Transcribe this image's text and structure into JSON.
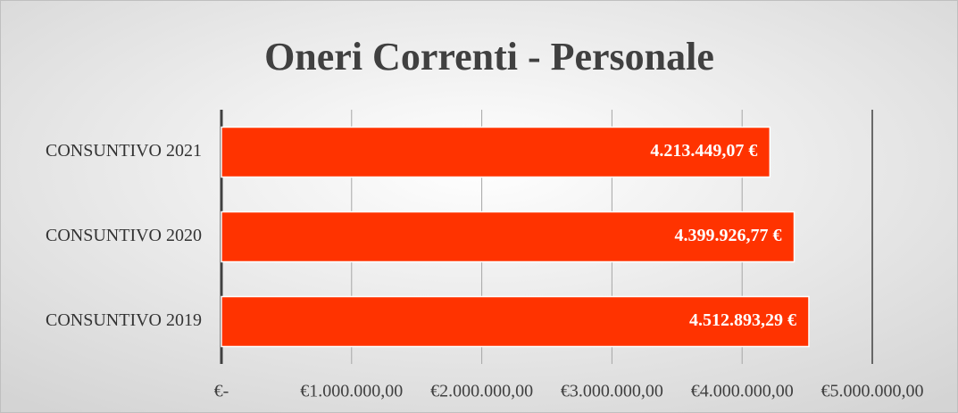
{
  "chart_data": {
    "type": "bar",
    "orientation": "horizontal",
    "title": "Oneri Correnti - Personale",
    "categories": [
      "CONSUNTIVO 2021",
      "CONSUNTIVO 2020",
      "CONSUNTIVO 2019"
    ],
    "values": [
      4213449.07,
      4399926.77,
      4512893.29
    ],
    "value_labels": [
      "4.213.449,07 €",
      "4.399.926,77 €",
      "4.512.893,29 €"
    ],
    "color": "#ff3300",
    "xlim": [
      0,
      5000000
    ],
    "xticks": [
      {
        "value": 0,
        "label": "€-"
      },
      {
        "value": 1000000,
        "label": "€1.000.000,00"
      },
      {
        "value": 2000000,
        "label": "€2.000.000,00"
      },
      {
        "value": 3000000,
        "label": "€3.000.000,00"
      },
      {
        "value": 4000000,
        "label": "€4.000.000,00"
      },
      {
        "value": 5000000,
        "label": "€5.000.000,00"
      }
    ],
    "grid": true
  }
}
